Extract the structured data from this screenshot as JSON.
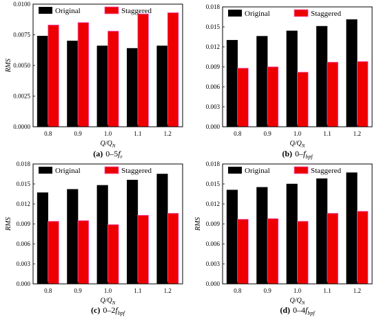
{
  "colors": {
    "original": "#000000",
    "staggered": "#ee0000",
    "staggered_edge": "#f062c8"
  },
  "chart_data": [
    {
      "type": "bar",
      "caption": {
        "label": "(a)",
        "text": "0–5",
        "var": "f",
        "sub": "r"
      },
      "categories": [
        "0.8",
        "0.9",
        "1.0",
        "1.1",
        "1.2"
      ],
      "series": [
        {
          "name": "Original",
          "values": [
            0.0074,
            0.007,
            0.0066,
            0.0064,
            0.0066
          ]
        },
        {
          "name": "Staggered",
          "values": [
            0.0083,
            0.0085,
            0.0078,
            0.0092,
            0.0093
          ]
        }
      ],
      "ylabel": "RMS",
      "xlabel": {
        "main": "Q/Q",
        "sub": "N"
      },
      "ylim": [
        0,
        0.01
      ],
      "yticks": [
        "0.0000",
        "0.0025",
        "0.0050",
        "0.0075",
        "0.0100"
      ],
      "legend": "top"
    },
    {
      "type": "bar",
      "caption": {
        "label": "(b)",
        "text": "0–",
        "var": "f",
        "sub": "bpf"
      },
      "categories": [
        "0.8",
        "0.9",
        "1.0",
        "1.1",
        "1.2"
      ],
      "series": [
        {
          "name": "Original",
          "values": [
            0.013,
            0.0136,
            0.0144,
            0.0151,
            0.0161
          ]
        },
        {
          "name": "Staggered",
          "values": [
            0.0088,
            0.009,
            0.0082,
            0.0097,
            0.0098
          ]
        }
      ],
      "ylabel": "",
      "xlabel": {
        "main": "Q/Q",
        "sub": "N"
      },
      "ylim": [
        0,
        0.018
      ],
      "yticks": [
        "0.000",
        "0.003",
        "0.006",
        "0.009",
        "0.012",
        "0.015",
        "0.018"
      ],
      "legend": "top"
    },
    {
      "type": "bar",
      "caption": {
        "label": "(c)",
        "text": "0–2",
        "var": "f",
        "sub": "bpf"
      },
      "categories": [
        "0.8",
        "0.9",
        "1.0",
        "1.1",
        "1.2"
      ],
      "series": [
        {
          "name": "Original",
          "values": [
            0.0137,
            0.0142,
            0.0148,
            0.0156,
            0.0165
          ]
        },
        {
          "name": "Staggered",
          "values": [
            0.0094,
            0.0095,
            0.0089,
            0.0103,
            0.0106
          ]
        }
      ],
      "ylabel": "RMS",
      "xlabel": {
        "main": "Q/Q",
        "sub": "N"
      },
      "ylim": [
        0,
        0.018
      ],
      "yticks": [
        "0.000",
        "0.003",
        "0.006",
        "0.009",
        "0.012",
        "0.015",
        "0.018"
      ],
      "legend": "top"
    },
    {
      "type": "bar",
      "caption": {
        "label": "(d)",
        "text": "0–4",
        "var": "f",
        "sub": "bpf"
      },
      "categories": [
        "0.8",
        "0.9",
        "1.0",
        "1.1",
        "1.2"
      ],
      "series": [
        {
          "name": "Original",
          "values": [
            0.0141,
            0.0145,
            0.015,
            0.0158,
            0.0167
          ]
        },
        {
          "name": "Staggered",
          "values": [
            0.0097,
            0.0098,
            0.0094,
            0.0106,
            0.0109
          ]
        }
      ],
      "ylabel": "RMS",
      "xlabel": {
        "main": "Q/Q",
        "sub": "N"
      },
      "ylim": [
        0,
        0.018
      ],
      "yticks": [
        "0.000",
        "0.003",
        "0.006",
        "0.009",
        "0.012",
        "0.015",
        "0.018"
      ],
      "legend": "top"
    }
  ]
}
